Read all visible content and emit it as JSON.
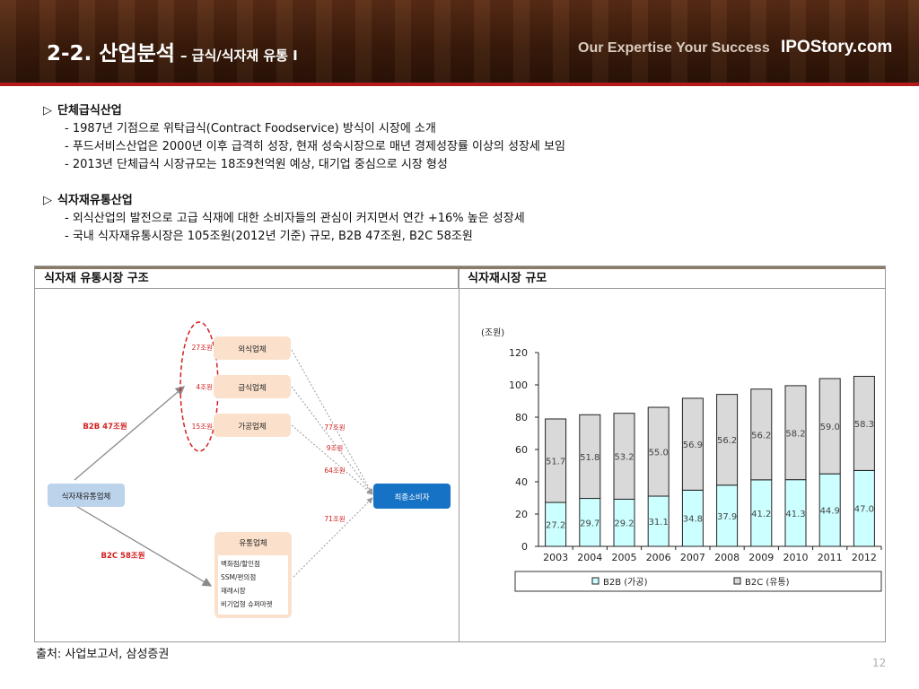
{
  "header": {
    "title_main": "2-2. 산업분석",
    "title_sub": "– 급식/식자재 유통 I",
    "tagline": "Our Expertise Your Success",
    "brand": "IPOStory.com"
  },
  "sections": [
    {
      "heading": "단체급식산업",
      "items": [
        "- 1987년 기점으로 위탁급식(Contract Foodservice) 방식이 시장에 소개",
        "- 푸드서비스산업은 2000년 이후 급격히 성장, 현재 성숙시장으로 매년 경제성장률 이상의 성장세 보임",
        "- 2013년 단체급식 시장규모는 18조9천억원 예상, 대기업 중심으로 시장 형성"
      ]
    },
    {
      "heading": "식자재유통산업",
      "items": [
        "- 외식산업의 발전으로 고급 식재에 대한 소비자들의 관심이 커지면서 연간 +16% 높은 성장세",
        "- 국내 식자재유통시장은 105조원(2012년 기준) 규모, B2B 47조원, B2C 58조원"
      ]
    }
  ],
  "table": {
    "left_header": "식자재 유통시장 구조",
    "right_header": "식자재시장 규모"
  },
  "diagram": {
    "source_node": "식자재유통업체",
    "b2b_label": "B2B 47조원",
    "b2c_label": "B2C 58조원",
    "mid_nodes": [
      {
        "value": "27조원",
        "label": "외식업체"
      },
      {
        "value": "4조원",
        "label": "급식업체"
      },
      {
        "value": "15조원",
        "label": "가공업체"
      }
    ],
    "retail_title": "유통업체",
    "retail_items": [
      "백화점/할인점",
      "SSM/편의점",
      "재래시장",
      "비기업형 슈퍼마켓"
    ],
    "edge_labels": [
      "77조원",
      "9조원",
      "64조원",
      "71조원"
    ],
    "final_node": "최종소비자",
    "colors": {
      "peach": "#fbe1cc",
      "red": "#d42020",
      "blue_node": "#1672c4",
      "light_blue": "#bcd3ec"
    }
  },
  "chart_data": {
    "type": "bar",
    "stacked": true,
    "unit_label": "(조원)",
    "categories": [
      "2003",
      "2004",
      "2005",
      "2006",
      "2007",
      "2008",
      "2009",
      "2010",
      "2011",
      "2012"
    ],
    "series": [
      {
        "name": "B2B (가공)",
        "color": "#ccffff",
        "values": [
          27.2,
          29.7,
          29.2,
          31.1,
          34.8,
          37.9,
          41.2,
          41.3,
          44.9,
          47.0
        ],
        "labels": [
          "27.2",
          "29.7",
          "29.2",
          "31.1",
          "34.8",
          "37.9",
          "41.2",
          "41.3",
          "44.9",
          "47.0"
        ]
      },
      {
        "name": "B2C (유통)",
        "color": "#d9d9d9",
        "values": [
          51.7,
          51.8,
          53.2,
          55.0,
          56.9,
          56.2,
          56.2,
          58.2,
          59.0,
          58.3
        ],
        "labels": [
          "51.7",
          "51.8",
          "53.2",
          "55.0",
          "56.9",
          "56.2",
          "56.2",
          "58.2",
          "59.0",
          "58.3"
        ]
      }
    ],
    "ylim": [
      0,
      120
    ],
    "yticks": [
      "0",
      "20",
      "40",
      "60",
      "80",
      "100",
      "120"
    ],
    "grid": false,
    "legend_position": "bottom"
  },
  "footer": {
    "source": "출처: 사업보고서, 삼성증권",
    "page": "12"
  }
}
